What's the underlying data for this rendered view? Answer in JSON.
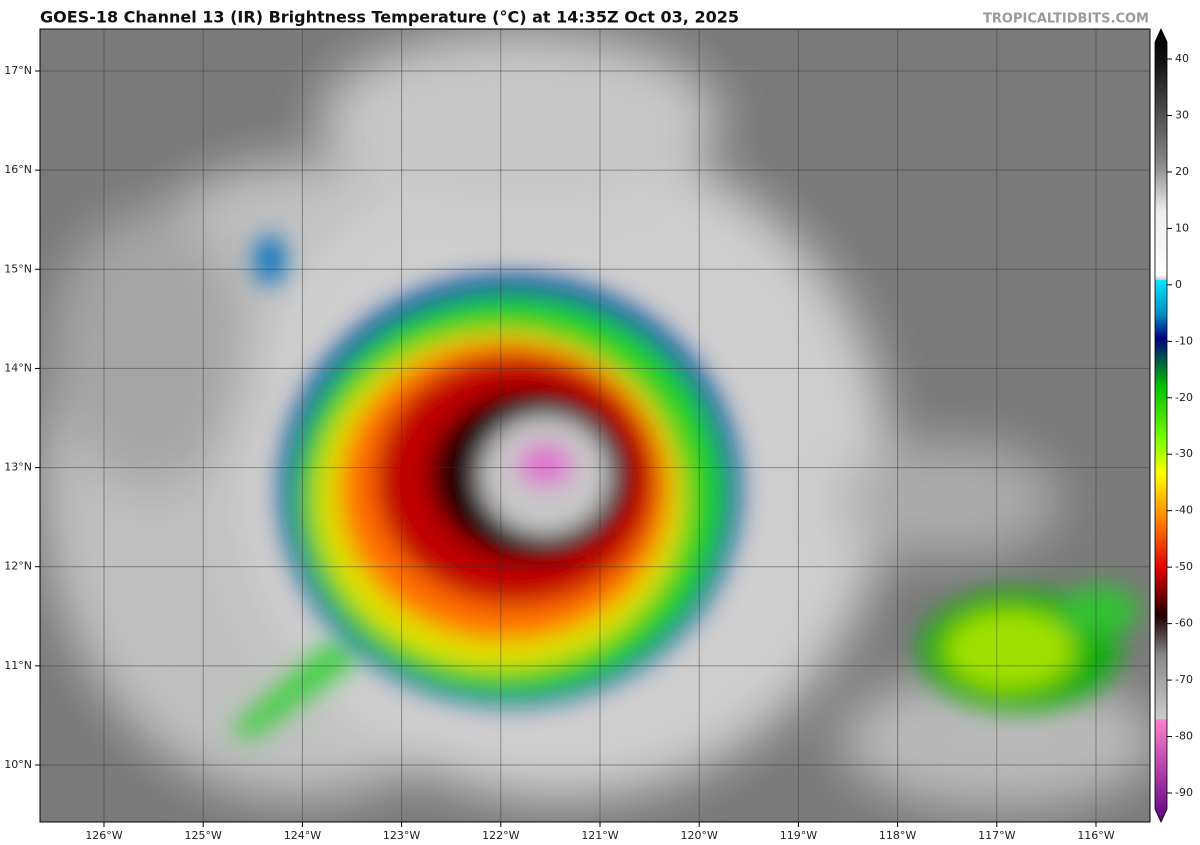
{
  "header": {
    "title": "GOES-18 Channel 13 (IR) Brightness Temperature (°C) at 14:35Z Oct 03, 2025",
    "watermark": "TROPICALTIDBITS.COM"
  },
  "map": {
    "lat_ticks": [
      {
        "value": 10,
        "label": "10°N"
      },
      {
        "value": 11,
        "label": "11°N"
      },
      {
        "value": 12,
        "label": "12°N"
      },
      {
        "value": 13,
        "label": "13°N"
      },
      {
        "value": 14,
        "label": "14°N"
      },
      {
        "value": 15,
        "label": "15°N"
      },
      {
        "value": 16,
        "label": "16°N"
      },
      {
        "value": 17,
        "label": "17°N"
      }
    ],
    "lon_ticks": [
      {
        "value": -126,
        "label": "126°W"
      },
      {
        "value": -125,
        "label": "125°W"
      },
      {
        "value": -124,
        "label": "124°W"
      },
      {
        "value": -123,
        "label": "123°W"
      },
      {
        "value": -122,
        "label": "122°W"
      },
      {
        "value": -121,
        "label": "121°W"
      },
      {
        "value": -120,
        "label": "120°W"
      },
      {
        "value": -119,
        "label": "119°W"
      },
      {
        "value": -118,
        "label": "118°W"
      },
      {
        "value": -117,
        "label": "117°W"
      },
      {
        "value": -116,
        "label": "116°W"
      }
    ]
  },
  "colorbar": {
    "ticks": [
      40,
      30,
      20,
      10,
      0,
      -10,
      -20,
      -30,
      -40,
      -50,
      -60,
      -70,
      -80,
      -90
    ]
  }
}
